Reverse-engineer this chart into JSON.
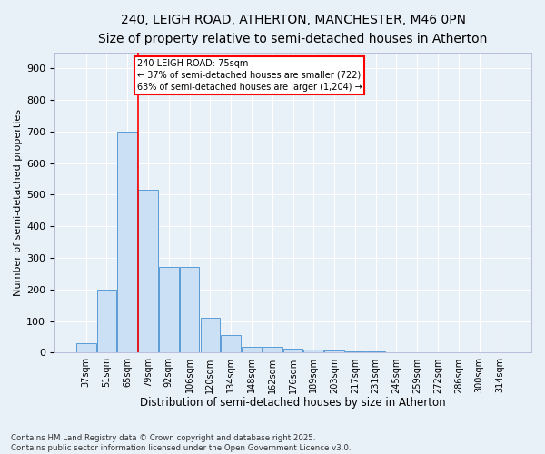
{
  "title_line1": "240, LEIGH ROAD, ATHERTON, MANCHESTER, M46 0PN",
  "title_line2": "Size of property relative to semi-detached houses in Atherton",
  "xlabel": "Distribution of semi-detached houses by size in Atherton",
  "ylabel": "Number of semi-detached properties",
  "footer": "Contains HM Land Registry data © Crown copyright and database right 2025.\nContains public sector information licensed under the Open Government Licence v3.0.",
  "bins": [
    "37sqm",
    "51sqm",
    "65sqm",
    "79sqm",
    "92sqm",
    "106sqm",
    "120sqm",
    "134sqm",
    "148sqm",
    "162sqm",
    "176sqm",
    "189sqm",
    "203sqm",
    "217sqm",
    "231sqm",
    "245sqm",
    "259sqm",
    "272sqm",
    "286sqm",
    "300sqm",
    "314sqm"
  ],
  "values": [
    30,
    200,
    700,
    515,
    270,
    270,
    110,
    55,
    20,
    18,
    14,
    10,
    8,
    4,
    3,
    2,
    2,
    1,
    1,
    0,
    0
  ],
  "bar_color": "#cce0f5",
  "bar_edge_color": "#5b9bd5",
  "vline_color": "red",
  "annotation_text": "240 LEIGH ROAD: 75sqm\n← 37% of semi-detached houses are smaller (722)\n63% of semi-detached houses are larger (1,204) →",
  "annotation_box_color": "red",
  "ylim": [
    0,
    950
  ],
  "yticks": [
    0,
    100,
    200,
    300,
    400,
    500,
    600,
    700,
    800,
    900
  ],
  "background_color": "#e8f0f8",
  "grid_color": "#ffffff",
  "title_fontsize": 10,
  "subtitle_fontsize": 9,
  "figwidth": 6.0,
  "figheight": 5.0,
  "dpi": 100
}
